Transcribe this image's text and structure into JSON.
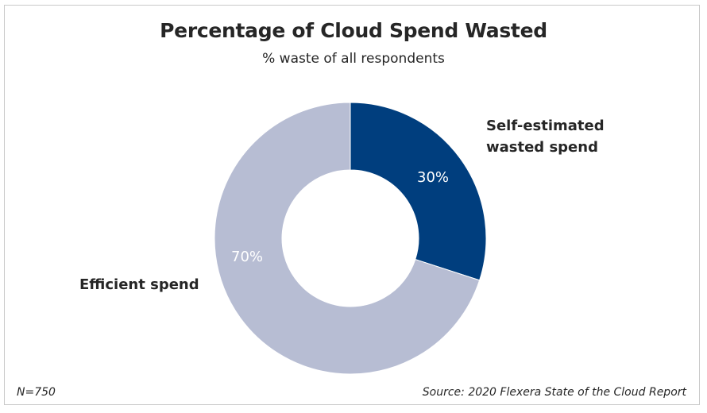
{
  "chart_data": {
    "type": "pie",
    "title": "Percentage of Cloud Spend Wasted",
    "subtitle": "% waste of all respondents",
    "slices": [
      {
        "label": "Self-estimated\nwasted spend",
        "value": 30,
        "value_label": "30%",
        "color": "#003e7e"
      },
      {
        "label": "Efficient spend",
        "value": 70,
        "value_label": "70%",
        "color": "#b7bdd3"
      }
    ],
    "donut": true
  },
  "footer": {
    "n": "N=750",
    "source": "Source: 2020 Flexera State of the Cloud Report"
  }
}
